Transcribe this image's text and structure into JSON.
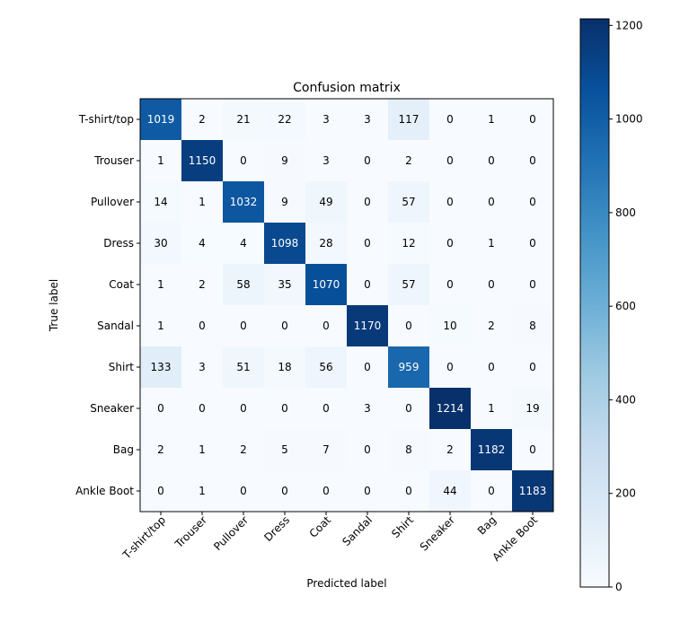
{
  "chart_data": {
    "type": "heatmap",
    "title": "Confusion matrix",
    "xlabel": "Predicted label",
    "ylabel": "True label",
    "x_categories": [
      "T-shirt/top",
      "Trouser",
      "Pullover",
      "Dress",
      "Coat",
      "Sandal",
      "Shirt",
      "Sneaker",
      "Bag",
      "Ankle Boot"
    ],
    "y_categories": [
      "T-shirt/top",
      "Trouser",
      "Pullover",
      "Dress",
      "Coat",
      "Sandal",
      "Shirt",
      "Sneaker",
      "Bag",
      "Ankle Boot"
    ],
    "values": [
      [
        1019,
        2,
        21,
        22,
        3,
        3,
        117,
        0,
        1,
        0
      ],
      [
        1,
        1150,
        0,
        9,
        3,
        0,
        2,
        0,
        0,
        0
      ],
      [
        14,
        1,
        1032,
        9,
        49,
        0,
        57,
        0,
        0,
        0
      ],
      [
        30,
        4,
        4,
        1098,
        28,
        0,
        12,
        0,
        1,
        0
      ],
      [
        1,
        2,
        58,
        35,
        1070,
        0,
        57,
        0,
        0,
        0
      ],
      [
        1,
        0,
        0,
        0,
        0,
        1170,
        0,
        10,
        2,
        8
      ],
      [
        133,
        3,
        51,
        18,
        56,
        0,
        959,
        0,
        0,
        0
      ],
      [
        0,
        0,
        0,
        0,
        0,
        3,
        0,
        1214,
        1,
        19
      ],
      [
        2,
        1,
        2,
        5,
        7,
        0,
        8,
        2,
        1182,
        0
      ],
      [
        0,
        1,
        0,
        0,
        0,
        0,
        0,
        44,
        0,
        1183
      ]
    ],
    "colormap": "Blues",
    "colormap_colors": [
      "#f7fbff",
      "#deebf7",
      "#c6dbef",
      "#9ecae1",
      "#6baed6",
      "#4292c6",
      "#2171b5",
      "#08519c",
      "#08306b"
    ],
    "vmin": 0,
    "vmax": 1214,
    "colorbar_ticks": [
      0,
      200,
      400,
      600,
      800,
      1000,
      1200
    ],
    "text_threshold": 607,
    "text_color_light": "#ffffff",
    "text_color_dark": "#000000"
  }
}
